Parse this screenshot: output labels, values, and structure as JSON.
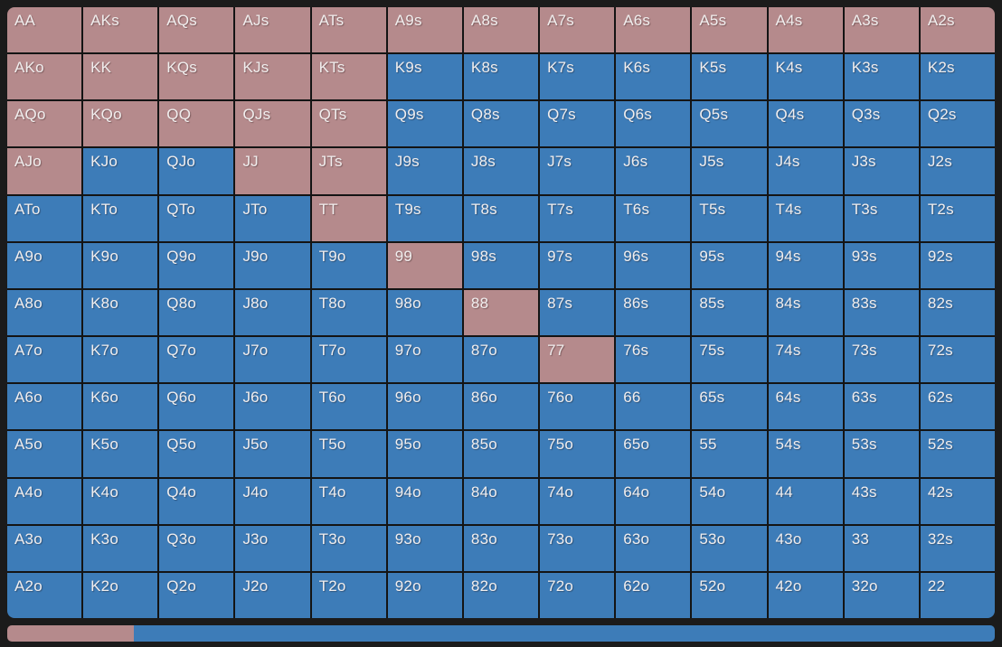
{
  "colors": {
    "background": "#1b1b1b",
    "grid_line": "#141414",
    "raise": "#b58a8c",
    "fold": "#3d7cb8",
    "cell_text": "#f1eeee"
  },
  "grid": {
    "rows": [
      [
        "AA",
        "AKs",
        "AQs",
        "AJs",
        "ATs",
        "A9s",
        "A8s",
        "A7s",
        "A6s",
        "A5s",
        "A4s",
        "A3s",
        "A2s"
      ],
      [
        "AKo",
        "KK",
        "KQs",
        "KJs",
        "KTs",
        "K9s",
        "K8s",
        "K7s",
        "K6s",
        "K5s",
        "K4s",
        "K3s",
        "K2s"
      ],
      [
        "AQo",
        "KQo",
        "QQ",
        "QJs",
        "QTs",
        "Q9s",
        "Q8s",
        "Q7s",
        "Q6s",
        "Q5s",
        "Q4s",
        "Q3s",
        "Q2s"
      ],
      [
        "AJo",
        "KJo",
        "QJo",
        "JJ",
        "JTs",
        "J9s",
        "J8s",
        "J7s",
        "J6s",
        "J5s",
        "J4s",
        "J3s",
        "J2s"
      ],
      [
        "ATo",
        "KTo",
        "QTo",
        "JTo",
        "TT",
        "T9s",
        "T8s",
        "T7s",
        "T6s",
        "T5s",
        "T4s",
        "T3s",
        "T2s"
      ],
      [
        "A9o",
        "K9o",
        "Q9o",
        "J9o",
        "T9o",
        "99",
        "98s",
        "97s",
        "96s",
        "95s",
        "94s",
        "93s",
        "92s"
      ],
      [
        "A8o",
        "K8o",
        "Q8o",
        "J8o",
        "T8o",
        "98o",
        "88",
        "87s",
        "86s",
        "85s",
        "84s",
        "83s",
        "82s"
      ],
      [
        "A7o",
        "K7o",
        "Q7o",
        "J7o",
        "T7o",
        "97o",
        "87o",
        "77",
        "76s",
        "75s",
        "74s",
        "73s",
        "72s"
      ],
      [
        "A6o",
        "K6o",
        "Q6o",
        "J6o",
        "T6o",
        "96o",
        "86o",
        "76o",
        "66",
        "65s",
        "64s",
        "63s",
        "62s"
      ],
      [
        "A5o",
        "K5o",
        "Q5o",
        "J5o",
        "T5o",
        "95o",
        "85o",
        "75o",
        "65o",
        "55",
        "54s",
        "53s",
        "52s"
      ],
      [
        "A4o",
        "K4o",
        "Q4o",
        "J4o",
        "T4o",
        "94o",
        "84o",
        "74o",
        "64o",
        "54o",
        "44",
        "43s",
        "42s"
      ],
      [
        "A3o",
        "K3o",
        "Q3o",
        "J3o",
        "T3o",
        "93o",
        "83o",
        "73o",
        "63o",
        "53o",
        "43o",
        "33",
        "32s"
      ],
      [
        "A2o",
        "K2o",
        "Q2o",
        "J2o",
        "T2o",
        "92o",
        "82o",
        "72o",
        "62o",
        "52o",
        "42o",
        "32o",
        "22"
      ]
    ],
    "selected": [
      "AA",
      "AKs",
      "AQs",
      "AJs",
      "ATs",
      "A9s",
      "A8s",
      "A7s",
      "A6s",
      "A5s",
      "A4s",
      "A3s",
      "A2s",
      "AKo",
      "KK",
      "KQs",
      "KJs",
      "KTs",
      "AQo",
      "KQo",
      "QQ",
      "QJs",
      "QTs",
      "AJo",
      "JJ",
      "JTs",
      "TT",
      "99",
      "88",
      "77"
    ]
  },
  "range_bar": {
    "segments": [
      {
        "state": "raise",
        "fraction": 0.128
      },
      {
        "state": "fold",
        "fraction": 0.872
      }
    ]
  }
}
